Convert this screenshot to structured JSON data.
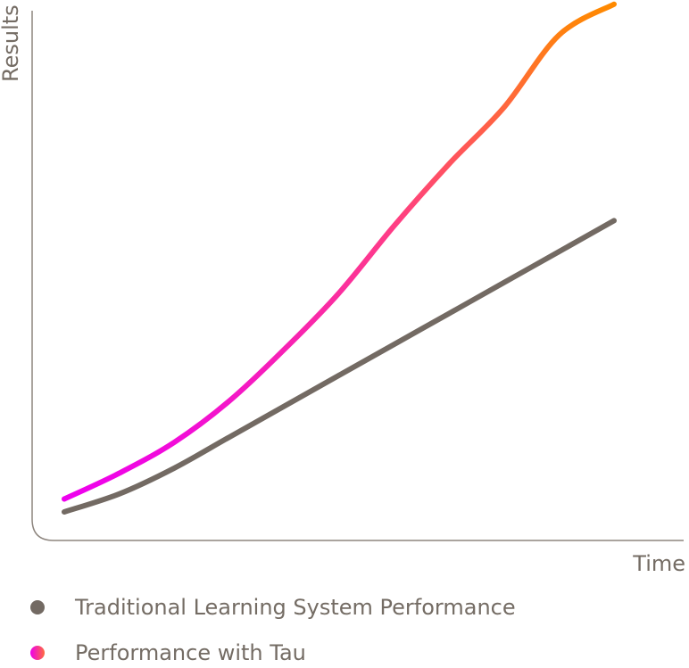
{
  "chart_data": {
    "type": "line",
    "xlabel": "Time",
    "ylabel": "Results",
    "grid": false,
    "legend_position": "bottom-left",
    "series": [
      {
        "name": "Traditional Learning System Performance",
        "color": "#736a63",
        "x": [
          0.0,
          0.1,
          0.2,
          0.3,
          0.4,
          0.5,
          0.6,
          0.7,
          0.8,
          0.9,
          1.0
        ],
        "y": [
          0.045,
          0.08,
          0.13,
          0.19,
          0.25,
          0.31,
          0.37,
          0.43,
          0.49,
          0.55,
          0.61
        ]
      },
      {
        "name": "Performance with Tau",
        "color_start": "#ee00ee",
        "color_mid": "#ff3d85",
        "color_end": "#ff8a00",
        "x": [
          0.0,
          0.1,
          0.2,
          0.3,
          0.4,
          0.5,
          0.6,
          0.7,
          0.8,
          0.9,
          1.0
        ],
        "y": [
          0.07,
          0.12,
          0.18,
          0.26,
          0.36,
          0.47,
          0.6,
          0.72,
          0.83,
          0.97,
          1.03
        ]
      }
    ]
  },
  "legend": {
    "items": [
      {
        "label": "Traditional Learning System Performance",
        "color": "#736a63"
      },
      {
        "label": "Performance with Tau",
        "color": "gradient"
      }
    ]
  }
}
